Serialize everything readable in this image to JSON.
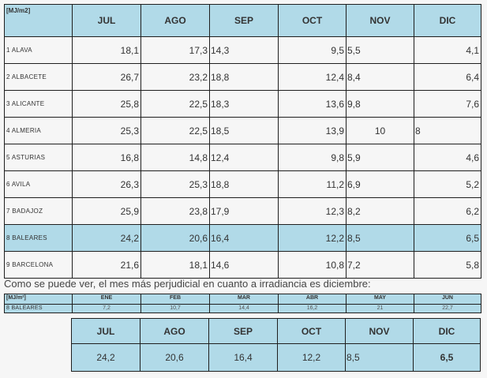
{
  "main_table": {
    "unit": "[MJ/m2]",
    "months": [
      "JUL",
      "AGO",
      "SEP",
      "OCT",
      "NOV",
      "DIC"
    ],
    "rows": [
      {
        "label": "1 ALAVA",
        "values": [
          "18,1",
          "17,3",
          "14,3",
          "9,5",
          "5,5",
          "4,1"
        ]
      },
      {
        "label": "2 ALBACETE",
        "values": [
          "26,7",
          "23,2",
          "18,8",
          "12,4",
          "8,4",
          "6,4"
        ]
      },
      {
        "label": "3 ALICANTE",
        "values": [
          "25,8",
          "22,5",
          "18,3",
          "13,6",
          "9,8",
          "7,6"
        ]
      },
      {
        "label": "4 ALMERIA",
        "values": [
          "25,3",
          "22,5",
          "18,5",
          "13,9",
          "10",
          "8"
        ]
      },
      {
        "label": "5 ASTURIAS",
        "values": [
          "16,8",
          "14,8",
          "12,4",
          "9,8",
          "5,9",
          "4,6"
        ]
      },
      {
        "label": "6 AVILA",
        "values": [
          "26,3",
          "25,3",
          "18,8",
          "11,2",
          "6,9",
          "5,2"
        ]
      },
      {
        "label": "7 BADAJOZ",
        "values": [
          "25,9",
          "23,8",
          "17,9",
          "12,3",
          "8,2",
          "6,2"
        ]
      },
      {
        "label": "8 BALEARES",
        "values": [
          "24,2",
          "20,6",
          "16,4",
          "12,2",
          "8,5",
          "6,5"
        ]
      },
      {
        "label": "9 BARCELONA",
        "values": [
          "21,6",
          "18,1",
          "14,6",
          "10,8",
          "7,2",
          "5,8"
        ]
      }
    ]
  },
  "note": "Como se puede ver, el mes más perjudicial en cuanto a irradiancia es diciembre:",
  "small_table": {
    "unit": "[MJ/m²]",
    "months": [
      "ENE",
      "FEB",
      "MAR",
      "ABR",
      "MAY",
      "JUN"
    ],
    "row_label": "8 BALEARES",
    "values": [
      "7,2",
      "10,7",
      "14,4",
      "16,2",
      "21",
      "22,7"
    ]
  },
  "lower_table": {
    "months": [
      "JUL",
      "AGO",
      "SEP",
      "OCT",
      "NOV",
      "DIC"
    ],
    "values": [
      "24,2",
      "20,6",
      "16,4",
      "12,2",
      "8,5",
      "6,5"
    ]
  }
}
